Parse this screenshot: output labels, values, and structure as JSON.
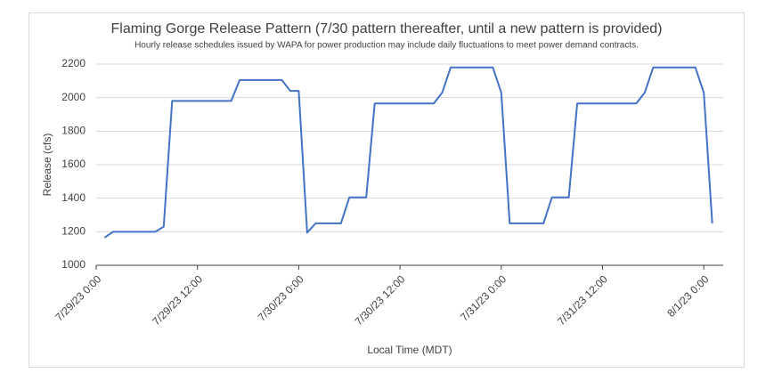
{
  "chart_data": {
    "type": "line",
    "title": "Flaming Gorge Release Pattern (7/30 pattern thereafter, until a new pattern is provided)",
    "subtitle": "Hourly release schedules issued by WAPA for power production may include daily fluctuations to meet power demand contracts.",
    "x_label": "Local Time (MDT)",
    "y_label": "Release (cfs)",
    "x": [
      1,
      2,
      7,
      8,
      9,
      16,
      17,
      22,
      23,
      24,
      25,
      26,
      29,
      30,
      32,
      33,
      40,
      41,
      42,
      47,
      48,
      49,
      53,
      54,
      56,
      57,
      64,
      65,
      66,
      71,
      72,
      73
    ],
    "series": [
      {
        "name": "Release",
        "color": "#4472c4",
        "values": [
          1165,
          1200,
          1200,
          1230,
          1980,
          1980,
          2105,
          2105,
          2040,
          2040,
          1195,
          1250,
          1250,
          1405,
          1405,
          1965,
          1965,
          2030,
          2180,
          2180,
          2030,
          1250,
          1250,
          1405,
          1405,
          1965,
          1965,
          2030,
          2180,
          2180,
          2030,
          1250
        ]
      }
    ],
    "xlim": [
      0,
      74.3
    ],
    "xticks": [
      {
        "value": 0,
        "label": "7/29/23 0:00"
      },
      {
        "value": 12,
        "label": "7/29/23 12:00"
      },
      {
        "value": 24,
        "label": "7/30/23 0:00"
      },
      {
        "value": 36,
        "label": "7/30/23 12:00"
      },
      {
        "value": 48,
        "label": "7/31/23 0:00"
      },
      {
        "value": 60,
        "label": "7/31/23 12:00"
      },
      {
        "value": 72,
        "label": "8/1/23 0:00"
      }
    ],
    "ylim": [
      1000,
      2200
    ],
    "yticks": [
      1000,
      1200,
      1400,
      1600,
      1800,
      2000,
      2200
    ],
    "grid": true
  }
}
